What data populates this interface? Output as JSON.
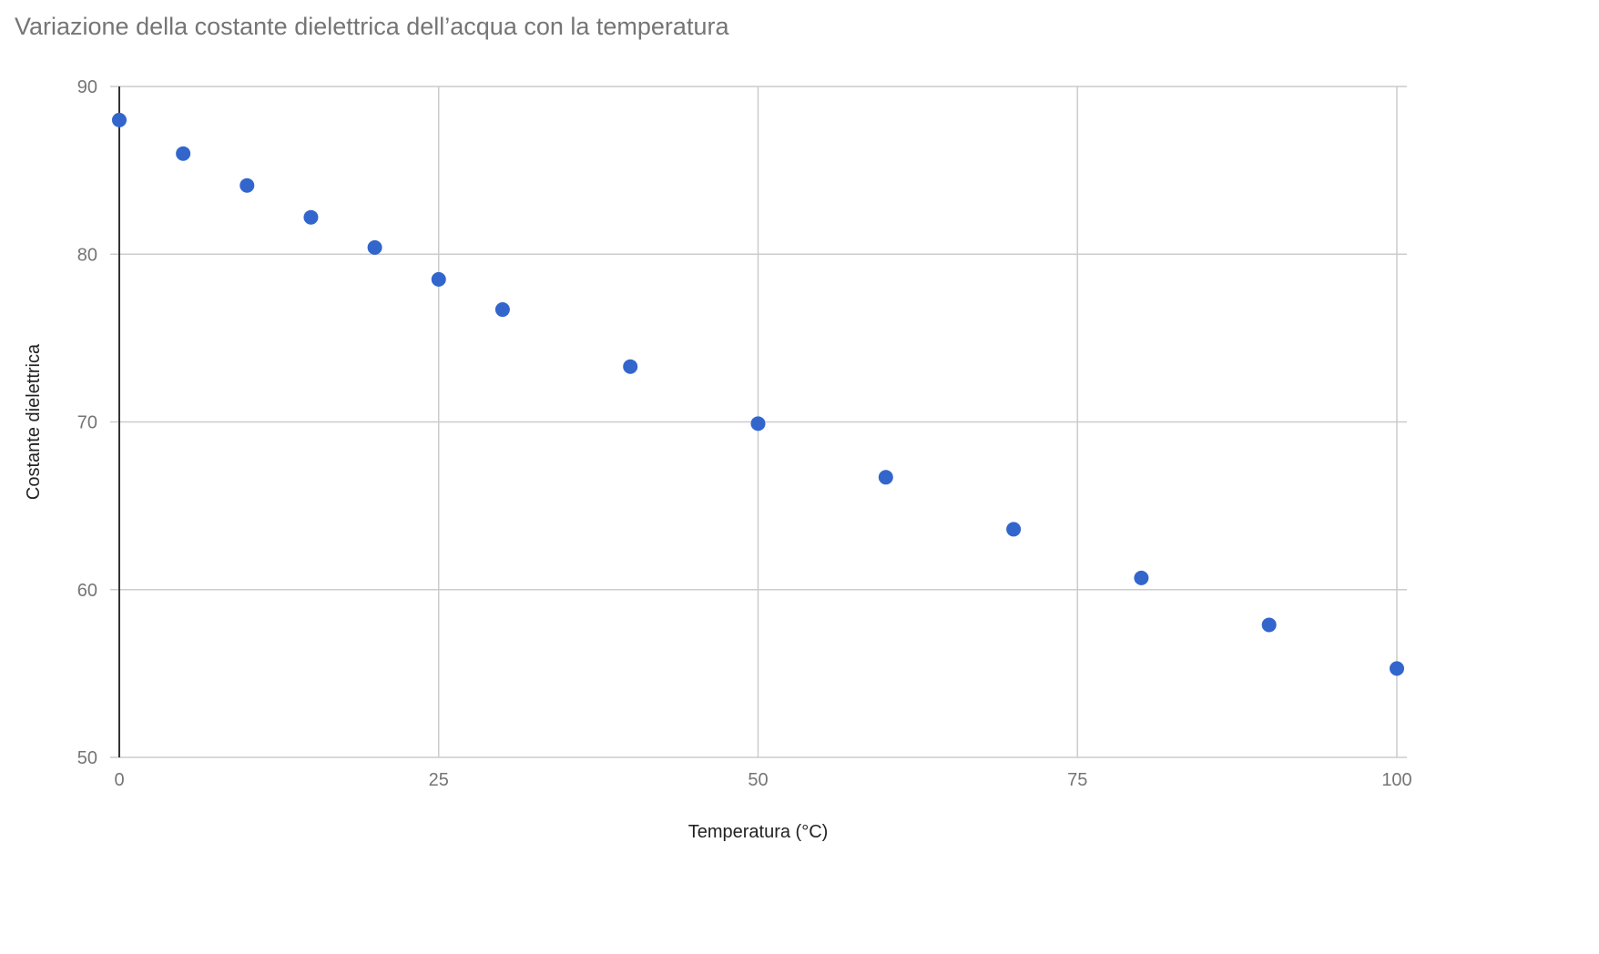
{
  "chart_data": {
    "type": "scatter",
    "title": "Variazione della costante dielettrica dell’acqua con la temperatura",
    "xlabel": "Temperatura (°C)",
    "ylabel": "Costante dielettrica",
    "xlim": [
      0,
      100
    ],
    "ylim": [
      50,
      90
    ],
    "xticks": [
      0,
      25,
      50,
      75,
      100
    ],
    "yticks": [
      50,
      60,
      70,
      80,
      90
    ],
    "grid": true,
    "legend": "none",
    "color": "#3366cc",
    "series": [
      {
        "x": [
          0,
          5,
          10,
          15,
          20,
          25,
          30,
          40,
          50,
          60,
          70,
          80,
          90,
          100
        ],
        "y": [
          88.0,
          86.0,
          84.1,
          82.2,
          80.4,
          78.5,
          76.7,
          73.3,
          69.9,
          66.7,
          63.6,
          60.7,
          57.9,
          55.3
        ]
      }
    ]
  }
}
